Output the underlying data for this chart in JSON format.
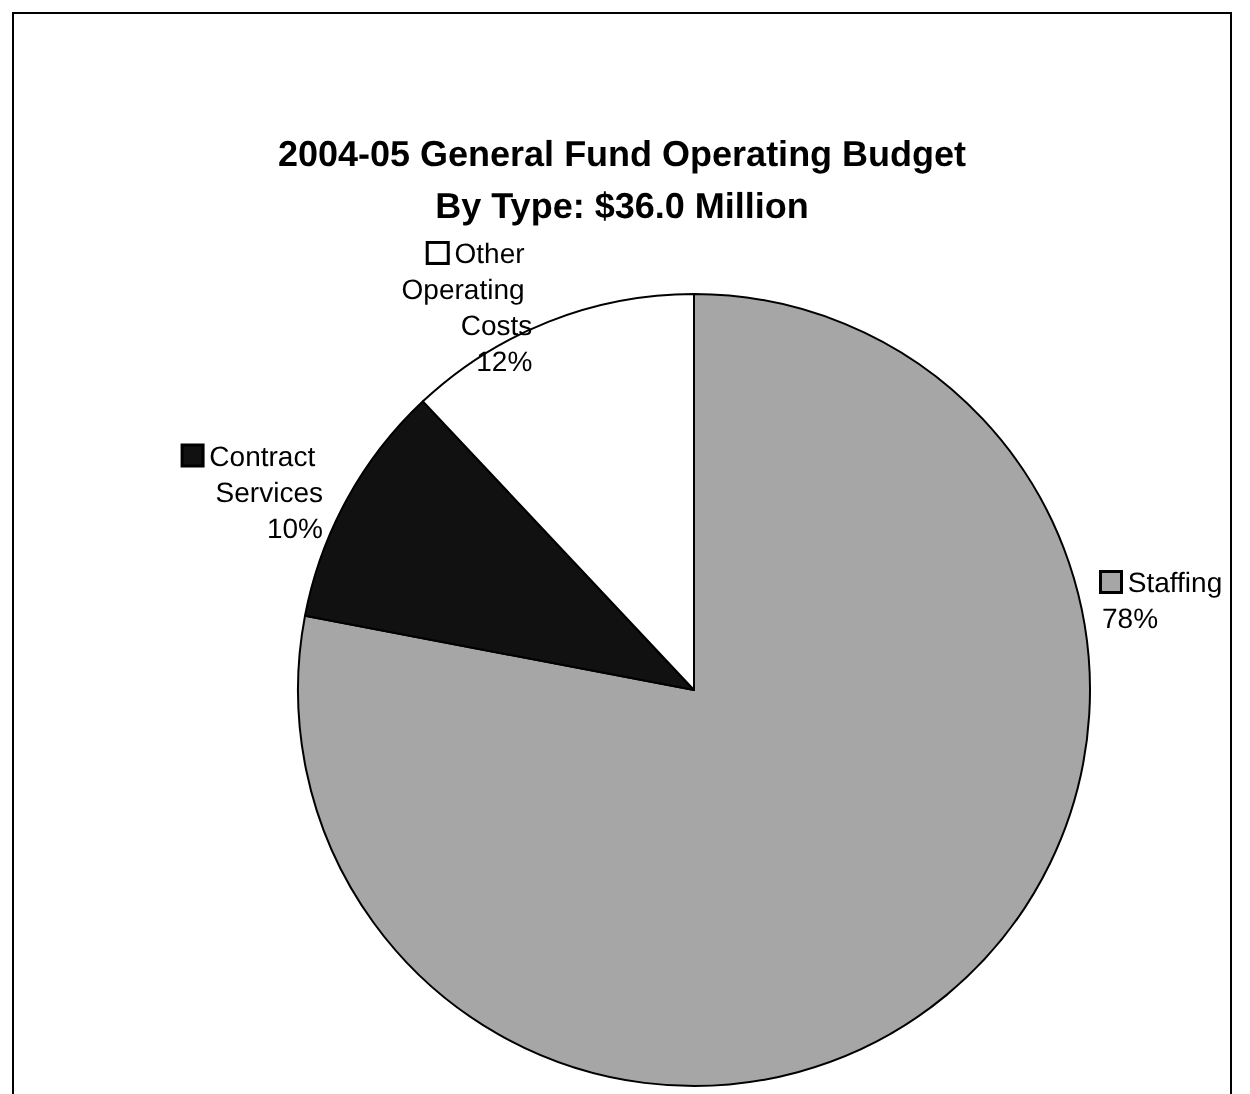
{
  "chart_data": {
    "type": "pie",
    "title": "2004-05 General Fund Operating Budget",
    "subtitle": "By Type: $36.0 Million",
    "categories": [
      "Staffing",
      "Contract Services",
      "Other Operating Costs"
    ],
    "values": [
      78,
      10,
      12
    ],
    "colors": [
      "#a6a6a6",
      "#111111",
      "#ffffff"
    ],
    "value_labels": [
      "78%",
      "10%",
      "12%"
    ],
    "legend": "left"
  }
}
